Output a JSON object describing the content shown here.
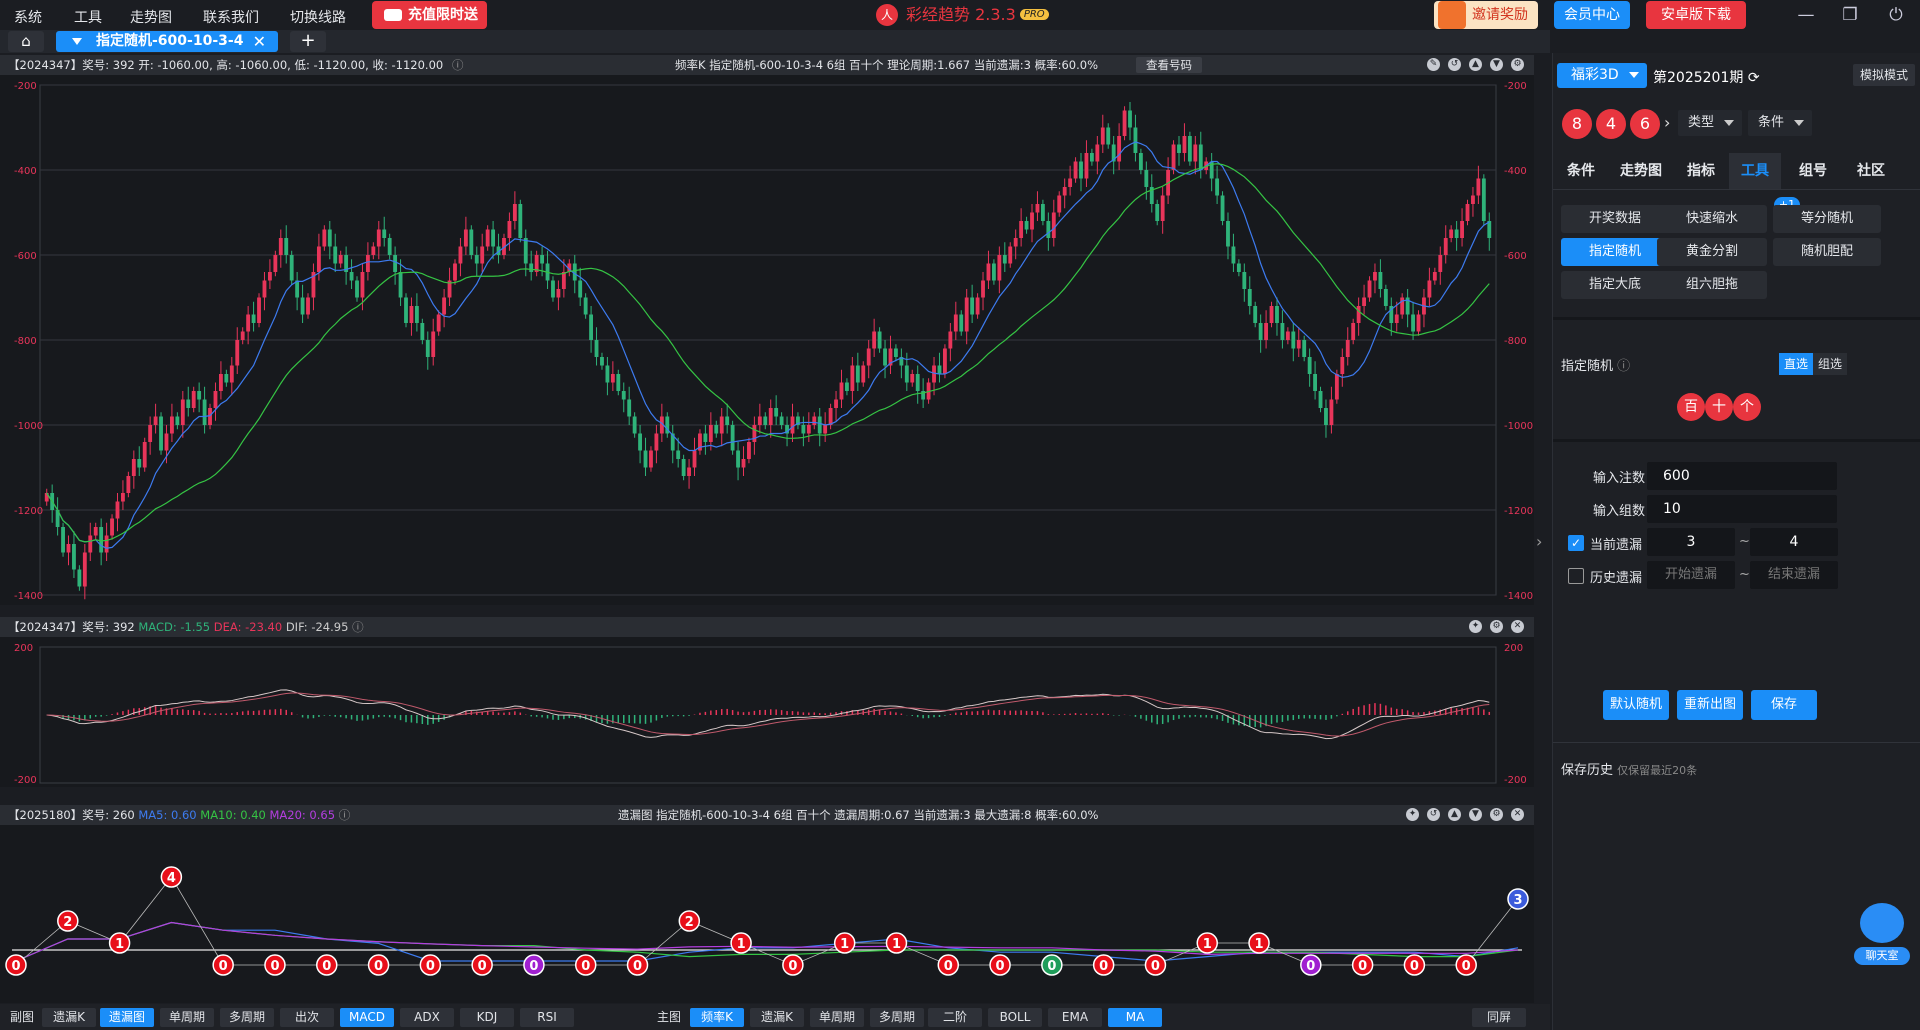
{
  "menu": {
    "system": "系统",
    "tools": "工具",
    "trend": "走势图",
    "contact": "联系我们",
    "switch_line": "切换线路",
    "recharge": "充值限时送"
  },
  "app": {
    "title": "彩经趋势 2.3.3",
    "pro": "PRO",
    "invite": "邀请奖励",
    "member": "会员中心",
    "android": "安卓版下载"
  },
  "tab": {
    "label": "指定随机-600-10-3-4"
  },
  "main_panel": {
    "info": "【2024347】奖号: 392  开: -1060.00, 高: -1060.00, 低: -1120.00, 收: -1120.00",
    "center": "频率K  指定随机-600-10-3-4  6组  百十个  理论周期:1.667  当前遗漏:3  概率:60.0%",
    "view_btn": "查看号码",
    "axis": [
      "-200",
      "-400",
      "-600",
      "-800",
      "-1000",
      "-1200",
      "-1400"
    ]
  },
  "macd_panel": {
    "prefix": "【2024347】奖号: 392 ",
    "macd": "MACD: -1.55",
    "dea": "DEA: -23.40",
    "dif": "DIF: -24.95",
    "axis_top": "200",
    "axis_bottom": "-200"
  },
  "omit_panel": {
    "prefix": "【2025180】奖号: 260 ",
    "ma5": "MA5: 0.60",
    "ma10": "MA10: 0.40",
    "ma20": "MA20: 0.65",
    "center": "遗漏图  指定随机-600-10-3-4  6组  百十个  遗漏周期:0.67  当前遗漏:3  最大遗漏:8  概率:60.0%"
  },
  "bottom": {
    "sub_label": "副图",
    "sub": [
      "遗漏K",
      "遗漏图",
      "单周期",
      "多周期",
      "出次",
      "MACD",
      "ADX",
      "KDJ",
      "RSI"
    ],
    "main_label": "主图",
    "main": [
      "频率K",
      "遗漏K",
      "单周期",
      "多周期",
      "二阶",
      "BOLL",
      "EMA",
      "MA"
    ],
    "fullscreen": "同屏"
  },
  "right": {
    "lottery": "福彩3D",
    "period": "第2025201期",
    "mock": "模拟模式",
    "balls": [
      "8",
      "4",
      "6"
    ],
    "type": "类型",
    "cond": "条件",
    "tabs": [
      "条件",
      "走势图",
      "指标",
      "工具",
      "组号",
      "社区"
    ],
    "tools": [
      "开奖数据",
      "快速缩水",
      "等分随机",
      "指定随机",
      "黄金分割",
      "随机胆配",
      "指定大底",
      "组六胆拖"
    ],
    "badge": "+1",
    "section": "指定随机",
    "mode_a": "直选",
    "mode_b": "组选",
    "pos": [
      "百",
      "十",
      "个"
    ],
    "bets_label": "输入注数",
    "bets": "600",
    "groups_label": "输入组数",
    "groups": "10",
    "cur_label": "当前遗漏",
    "cur_from": "3",
    "cur_to": "4",
    "tilde": "~",
    "hist_label": "历史遗漏",
    "hist_from": "开始遗漏",
    "hist_to": "结束遗漏",
    "btn_default": "默认随机",
    "btn_redo": "重新出图",
    "btn_save": "保存",
    "history": "保存历史",
    "history_note": "仅保留最近20条",
    "chat": "聊天室"
  },
  "colors": {
    "up": "#e8355a",
    "down": "#2fb37a",
    "ma5": "#3d7bf0",
    "ma10": "#35c444",
    "accent": "#1b8ef8"
  },
  "chart_data": [
    {
      "type": "candlestick",
      "title": "频率K",
      "ylim": [
        -1400,
        -200
      ],
      "closes": [
        -1160,
        -1200,
        -1240,
        -1300,
        -1280,
        -1340,
        -1380,
        -1300,
        -1260,
        -1240,
        -1300,
        -1260,
        -1220,
        -1180,
        -1160,
        -1120,
        -1080,
        -1100,
        -1040,
        -1000,
        -980,
        -1060,
        -1020,
        -980,
        -1000,
        -940,
        -960,
        -920,
        -940,
        -1000,
        -960,
        -920,
        -880,
        -900,
        -860,
        -800,
        -780,
        -740,
        -760,
        -700,
        -660,
        -640,
        -600,
        -560,
        -600,
        -660,
        -700,
        -740,
        -700,
        -640,
        -580,
        -540,
        -580,
        -620,
        -600,
        -640,
        -660,
        -700,
        -640,
        -600,
        -580,
        -540,
        -560,
        -600,
        -640,
        -700,
        -760,
        -720,
        -760,
        -800,
        -840,
        -780,
        -740,
        -700,
        -660,
        -620,
        -580,
        -540,
        -600,
        -620,
        -580,
        -540,
        -580,
        -600,
        -560,
        -520,
        -480,
        -560,
        -620,
        -640,
        -600,
        -620,
        -660,
        -700,
        -680,
        -640,
        -620,
        -660,
        -700,
        -740,
        -800,
        -840,
        -860,
        -900,
        -880,
        -920,
        -940,
        -980,
        -1020,
        -1060,
        -1100,
        -1060,
        -1020,
        -980,
        -1020,
        -1060,
        -1080,
        -1120,
        -1100,
        -1060,
        -1020,
        -1040,
        -1000,
        -1020,
        -980,
        -1000,
        -1060,
        -1100,
        -1080,
        -1040,
        -1000,
        -980,
        -1000,
        -960,
        -980,
        -1000,
        -1020,
        -980,
        -1000,
        -1020,
        -1000,
        -980,
        -1020,
        -1000,
        -960,
        -940,
        -900,
        -920,
        -860,
        -900,
        -860,
        -820,
        -780,
        -820,
        -860,
        -820,
        -840,
        -860,
        -900,
        -880,
        -920,
        -940,
        -900,
        -860,
        -880,
        -820,
        -780,
        -740,
        -780,
        -700,
        -740,
        -700,
        -660,
        -620,
        -660,
        -600,
        -620,
        -580,
        -560,
        -520,
        -540,
        -500,
        -480,
        -520,
        -560,
        -500,
        -460,
        -440,
        -420,
        -380,
        -420,
        -360,
        -380,
        -340,
        -300,
        -340,
        -380,
        -320,
        -260,
        -300,
        -360,
        -400,
        -440,
        -480,
        -520,
        -460,
        -400,
        -340,
        -360,
        -320,
        -380,
        -340,
        -400,
        -380,
        -420,
        -460,
        -520,
        -580,
        -620,
        -640,
        -680,
        -720,
        -760,
        -800,
        -760,
        -720,
        -760,
        -800,
        -780,
        -820,
        -800,
        -840,
        -880,
        -920,
        -960,
        -1000,
        -940,
        -880,
        -840,
        -800,
        -760,
        -720,
        -700,
        -660,
        -640,
        -680,
        -720,
        -760,
        -740,
        -700,
        -740,
        -780,
        -740,
        -700,
        -660,
        -640,
        -600,
        -560,
        -540,
        -560,
        -520,
        -480,
        -460,
        -420,
        -520,
        -560
      ]
    },
    {
      "type": "macd",
      "title": "MACD",
      "ylim": [
        -200,
        200
      ],
      "macd_last": -1.55,
      "dea_last": -23.4,
      "dif_last": -24.95
    },
    {
      "type": "line",
      "title": "遗漏图",
      "values": [
        0,
        2,
        1,
        4,
        0,
        0,
        0,
        0,
        0,
        0,
        0,
        0,
        0,
        2,
        1,
        0,
        1,
        1,
        0,
        0,
        0,
        0,
        0,
        1,
        1,
        0,
        0,
        0,
        0,
        3
      ],
      "purple_points": [
        10,
        25
      ],
      "green_points": [
        20
      ],
      "blue_points": [
        29
      ],
      "ma5_last": 0.6,
      "ma10_last": 0.4,
      "ma20_last": 0.65
    }
  ]
}
